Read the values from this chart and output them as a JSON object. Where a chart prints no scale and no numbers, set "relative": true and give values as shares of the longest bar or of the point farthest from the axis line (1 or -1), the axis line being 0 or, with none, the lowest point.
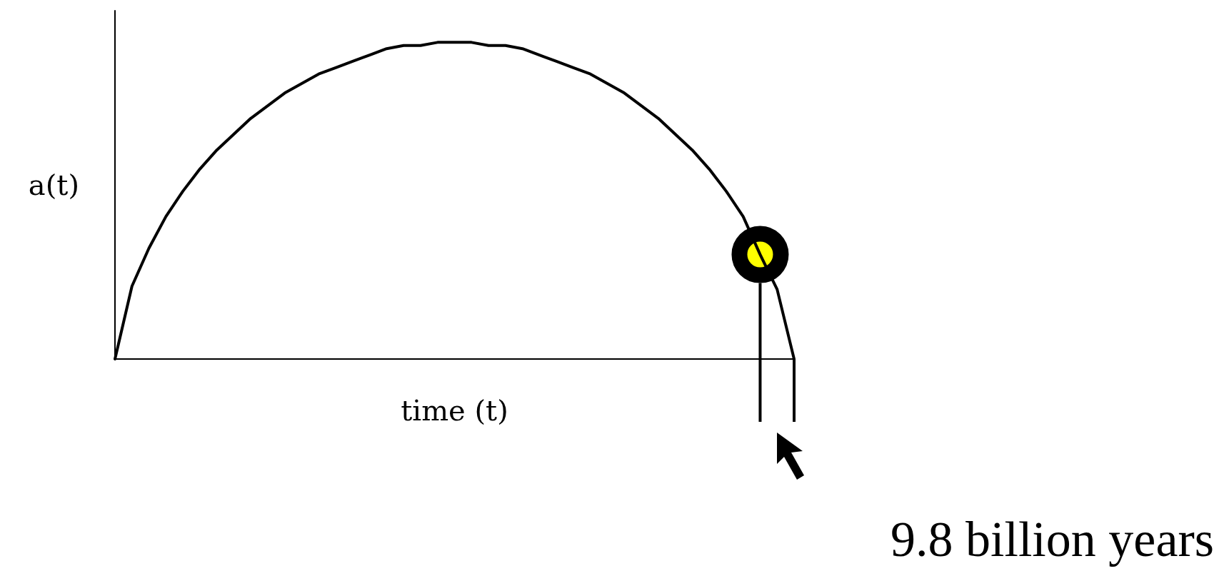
{
  "chart_data": {
    "type": "line",
    "relative": true,
    "xlabel": "time (t)",
    "ylabel": "a(t)",
    "tick_labels": false,
    "grid": false,
    "categories": [
      null,
      null,
      null,
      null,
      null,
      null,
      null,
      null,
      null,
      null,
      null,
      null,
      null,
      null,
      null,
      null,
      null,
      null,
      null,
      null,
      null,
      null,
      null,
      null,
      null,
      null,
      null,
      null,
      null,
      null,
      null,
      null,
      null,
      null,
      null,
      null,
      null,
      null,
      null,
      null,
      null
    ],
    "series": [
      {
        "color": "#000000",
        "marker": "none",
        "values": [
          0,
          0.23,
          0.35,
          0.45,
          0.53,
          0.6,
          0.66,
          0.71,
          0.76,
          0.8,
          0.84,
          0.87,
          0.9,
          0.92,
          0.94,
          0.96,
          0.98,
          0.99,
          0.99,
          1,
          1,
          1,
          0.99,
          0.99,
          0.98,
          0.96,
          0.94,
          0.92,
          0.9,
          0.87,
          0.84,
          0.8,
          0.76,
          0.71,
          0.66,
          0.6,
          0.53,
          0.45,
          0.33,
          0.22,
          0
        ]
      }
    ],
    "annotations": [
      "9.8 billion years"
    ]
  }
}
